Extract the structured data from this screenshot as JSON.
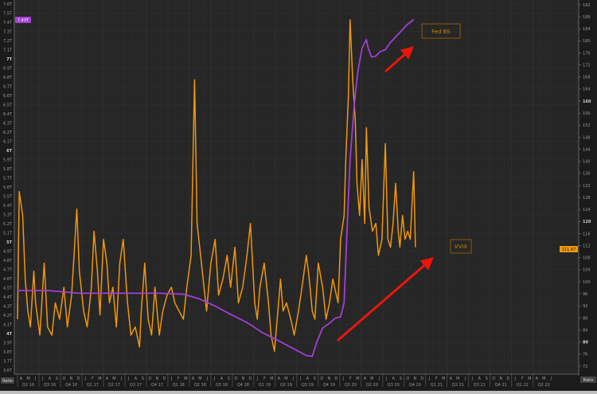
{
  "chart_data": {
    "type": "line",
    "grid": true,
    "x_range": [
      2016.25,
      2022.78
    ],
    "x_tick_labels": [
      "Q2 16",
      "Q3 16",
      "Q4 16",
      "Q1 17",
      "Q2 17",
      "Q3 17",
      "Q4 17",
      "Q1 18",
      "Q2 18",
      "Q3 18",
      "Q4 18",
      "Q1 19",
      "Q2 19",
      "Q3 19",
      "Q4 19",
      "Q1 20",
      "Q2 20",
      "Q3 20",
      "Q4 20",
      "Q1 21",
      "Q2 21",
      "Q3 21",
      "Q4 21",
      "Q1 22",
      "Q2 22"
    ],
    "month_letters": [
      "A",
      "M",
      "J",
      "J",
      "A",
      "S",
      "O",
      "N",
      "D",
      "J",
      "F",
      "M"
    ],
    "left_axis": {
      "ylim": [
        3.6,
        7.6
      ],
      "tick_labels": [
        "7.6T",
        "7.5T",
        "7.4T",
        "7.3T",
        "7.2T",
        "7.1T",
        "7T",
        "6.9T",
        "6.8T",
        "6.7T",
        "6.6T",
        "6.5T",
        "6.4T",
        "6.3T",
        "6.2T",
        "6.1T",
        "6T",
        "5.9T",
        "5.8T",
        "5.7T",
        "5.6T",
        "5.5T",
        "5.4T",
        "5.3T",
        "5.2T",
        "5.1T",
        "5T",
        "4.9T",
        "4.8T",
        "4.7T",
        "4.6T",
        "4.5T",
        "4.4T",
        "4.3T",
        "4.2T",
        "4.1T",
        "4T",
        "3.9T",
        "3.8T",
        "3.7T",
        "3.6T"
      ],
      "bold_labels": [
        "7T",
        "6T",
        "5T",
        "4T"
      ],
      "last_value_tag": "7.43T",
      "footer_label": "Ratio"
    },
    "right_axis": {
      "ylim": [
        72,
        192
      ],
      "tick_labels": [
        "192",
        "188",
        "184",
        "180",
        "176",
        "172",
        "168",
        "164",
        "160",
        "156",
        "152",
        "148",
        "144",
        "140",
        "136",
        "132",
        "128",
        "124",
        "120",
        "116",
        "112",
        "108",
        "104",
        "100",
        "96",
        "92",
        "88",
        "84",
        "80",
        "76",
        "72"
      ],
      "bold_labels": [
        "160",
        "120",
        "80"
      ],
      "last_value_tag": "111.47",
      "footer_label": "Ratio"
    },
    "series": [
      {
        "name": "Fed BS",
        "axis": "left",
        "color": "#a23ed6",
        "points": [
          [
            2016.25,
            4.47
          ],
          [
            2016.6,
            4.47
          ],
          [
            2016.97,
            4.44
          ],
          [
            2017.44,
            4.44
          ],
          [
            2017.9,
            4.44
          ],
          [
            2018.18,
            4.43
          ],
          [
            2018.36,
            4.38
          ],
          [
            2018.55,
            4.3
          ],
          [
            2018.73,
            4.21
          ],
          [
            2018.92,
            4.12
          ],
          [
            2019.1,
            4.01
          ],
          [
            2019.29,
            3.92
          ],
          [
            2019.47,
            3.83
          ],
          [
            2019.61,
            3.76
          ],
          [
            2019.68,
            3.75
          ],
          [
            2019.73,
            3.9
          ],
          [
            2019.8,
            4.06
          ],
          [
            2019.89,
            4.12
          ],
          [
            2019.95,
            4.17
          ],
          [
            2020.01,
            4.18
          ],
          [
            2020.05,
            4.34
          ],
          [
            2020.08,
            5.03
          ],
          [
            2020.12,
            5.9
          ],
          [
            2020.17,
            6.51
          ],
          [
            2020.21,
            6.86
          ],
          [
            2020.26,
            7.12
          ],
          [
            2020.31,
            7.21
          ],
          [
            2020.33,
            7.12
          ],
          [
            2020.37,
            7.02
          ],
          [
            2020.42,
            7.03
          ],
          [
            2020.47,
            7.08
          ],
          [
            2020.53,
            7.1
          ],
          [
            2020.58,
            7.17
          ],
          [
            2020.64,
            7.23
          ],
          [
            2020.69,
            7.28
          ],
          [
            2020.75,
            7.34
          ],
          [
            2020.79,
            7.38
          ],
          [
            2020.82,
            7.4
          ],
          [
            2020.86,
            7.43
          ]
        ]
      },
      {
        "name": "VVIX",
        "axis": "right",
        "color": "#f0960e",
        "points": [
          [
            2016.25,
            87.6
          ],
          [
            2016.27,
            130
          ],
          [
            2016.31,
            122
          ],
          [
            2016.34,
            100.9
          ],
          [
            2016.37,
            90.3
          ],
          [
            2016.4,
            85
          ],
          [
            2016.44,
            103.5
          ],
          [
            2016.46,
            93
          ],
          [
            2016.51,
            82.3
          ],
          [
            2016.56,
            106.2
          ],
          [
            2016.6,
            85
          ],
          [
            2016.65,
            82.3
          ],
          [
            2016.69,
            93
          ],
          [
            2016.74,
            87.6
          ],
          [
            2016.79,
            98.2
          ],
          [
            2016.83,
            85
          ],
          [
            2016.88,
            95.6
          ],
          [
            2016.94,
            124.2
          ],
          [
            2016.97,
            103.5
          ],
          [
            2017.02,
            90.3
          ],
          [
            2017.06,
            85
          ],
          [
            2017.11,
            98.2
          ],
          [
            2017.14,
            116.8
          ],
          [
            2017.18,
            103.5
          ],
          [
            2017.21,
            89
          ],
          [
            2017.25,
            114.1
          ],
          [
            2017.29,
            106.2
          ],
          [
            2017.32,
            93
          ],
          [
            2017.36,
            98.2
          ],
          [
            2017.4,
            85
          ],
          [
            2017.44,
            106.2
          ],
          [
            2017.48,
            114.1
          ],
          [
            2017.53,
            93
          ],
          [
            2017.57,
            82.3
          ],
          [
            2017.62,
            85
          ],
          [
            2017.67,
            78.4
          ],
          [
            2017.69,
            90.3
          ],
          [
            2017.73,
            106.2
          ],
          [
            2017.77,
            87.6
          ],
          [
            2017.81,
            82.3
          ],
          [
            2017.85,
            98.2
          ],
          [
            2017.9,
            82.3
          ],
          [
            2017.94,
            90.3
          ],
          [
            2017.99,
            95.6
          ],
          [
            2018.04,
            98.2
          ],
          [
            2018.08,
            93
          ],
          [
            2018.13,
            90.3
          ],
          [
            2018.18,
            87.6
          ],
          [
            2018.22,
            98.2
          ],
          [
            2018.27,
            108.8
          ],
          [
            2018.31,
            167.1
          ],
          [
            2018.34,
            119.4
          ],
          [
            2018.38,
            108.8
          ],
          [
            2018.42,
            98.2
          ],
          [
            2018.45,
            90.3
          ],
          [
            2018.5,
            106.2
          ],
          [
            2018.55,
            114.1
          ],
          [
            2018.59,
            95.6
          ],
          [
            2018.64,
            100.9
          ],
          [
            2018.69,
            108.8
          ],
          [
            2018.73,
            98.2
          ],
          [
            2018.78,
            111.5
          ],
          [
            2018.82,
            93
          ],
          [
            2018.87,
            98.2
          ],
          [
            2018.92,
            108.8
          ],
          [
            2018.96,
            119.4
          ],
          [
            2019.01,
            93
          ],
          [
            2019.04,
            87.6
          ],
          [
            2019.07,
            98.2
          ],
          [
            2019.12,
            106.2
          ],
          [
            2019.17,
            93
          ],
          [
            2019.2,
            82.3
          ],
          [
            2019.24,
            77
          ],
          [
            2019.28,
            90.3
          ],
          [
            2019.31,
            100.9
          ],
          [
            2019.34,
            90.3
          ],
          [
            2019.38,
            93
          ],
          [
            2019.43,
            87.6
          ],
          [
            2019.47,
            82.3
          ],
          [
            2019.52,
            90.3
          ],
          [
            2019.56,
            98.2
          ],
          [
            2019.61,
            108.8
          ],
          [
            2019.64,
            102.2
          ],
          [
            2019.68,
            90.3
          ],
          [
            2019.71,
            87.6
          ],
          [
            2019.75,
            106.2
          ],
          [
            2019.8,
            98.2
          ],
          [
            2019.84,
            87.6
          ],
          [
            2019.88,
            93
          ],
          [
            2019.92,
            100.9
          ],
          [
            2019.94,
            98.2
          ],
          [
            2019.98,
            93
          ],
          [
            2020.01,
            114.1
          ],
          [
            2020.05,
            122
          ],
          [
            2020.07,
            140.6
          ],
          [
            2020.1,
            161.8
          ],
          [
            2020.12,
            187
          ],
          [
            2020.15,
            167.1
          ],
          [
            2020.18,
            153.9
          ],
          [
            2020.2,
            132.7
          ],
          [
            2020.23,
            122
          ],
          [
            2020.26,
            140.6
          ],
          [
            2020.29,
            119.4
          ],
          [
            2020.31,
            151.2
          ],
          [
            2020.34,
            124.7
          ],
          [
            2020.38,
            116.8
          ],
          [
            2020.42,
            119.4
          ],
          [
            2020.45,
            108.8
          ],
          [
            2020.49,
            114.1
          ],
          [
            2020.53,
            145.9
          ],
          [
            2020.56,
            114.1
          ],
          [
            2020.59,
            111.5
          ],
          [
            2020.62,
            119.4
          ],
          [
            2020.65,
            132.7
          ],
          [
            2020.68,
            116.8
          ],
          [
            2020.7,
            111.5
          ],
          [
            2020.73,
            122
          ],
          [
            2020.76,
            114.1
          ],
          [
            2020.79,
            116.8
          ],
          [
            2020.82,
            114.1
          ],
          [
            2020.86,
            136.6
          ],
          [
            2020.88,
            111.5
          ]
        ]
      }
    ],
    "annotations": [
      {
        "text": "Fed BS",
        "color": "#c8860a"
      },
      {
        "text": "VVIX",
        "color": "#c8860a"
      }
    ],
    "arrow_color": "#e8160c"
  }
}
